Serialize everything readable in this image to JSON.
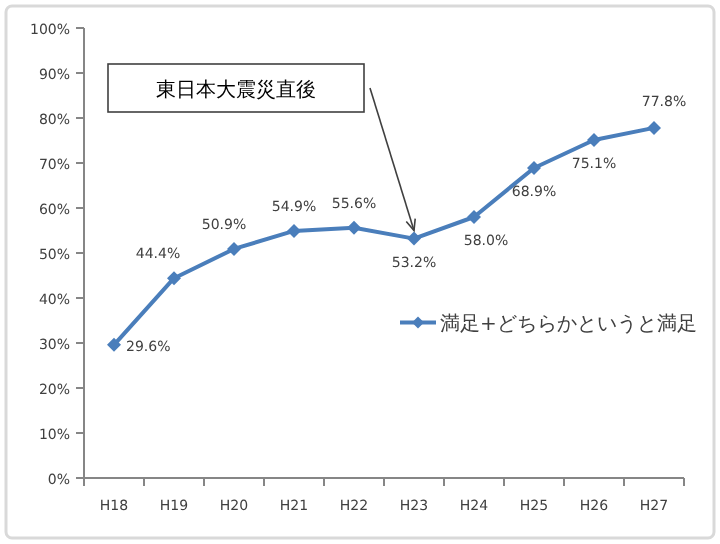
{
  "chart_data": {
    "type": "line",
    "categories": [
      "H18",
      "H19",
      "H20",
      "H21",
      "H22",
      "H23",
      "H24",
      "H25",
      "H26",
      "H27"
    ],
    "series": [
      {
        "name": "満足+どちらかというと満足",
        "color": "#4a7ebb",
        "values": [
          29.6,
          44.4,
          50.9,
          54.9,
          55.6,
          53.2,
          58.0,
          68.9,
          75.1,
          77.8
        ],
        "value_labels": [
          "29.6%",
          "44.4%",
          "50.9%",
          "54.9%",
          "55.6%",
          "53.2%",
          "58.0%",
          "68.9%",
          "75.1%",
          "77.8%"
        ]
      }
    ],
    "ylim": [
      0,
      100
    ],
    "yticks": [
      {
        "value": 0,
        "label": "0%"
      },
      {
        "value": 10,
        "label": "10%"
      },
      {
        "value": 20,
        "label": "20%"
      },
      {
        "value": 30,
        "label": "30%"
      },
      {
        "value": 40,
        "label": "40%"
      },
      {
        "value": 50,
        "label": "50%"
      },
      {
        "value": 60,
        "label": "60%"
      },
      {
        "value": 70,
        "label": "70%"
      },
      {
        "value": 80,
        "label": "80%"
      },
      {
        "value": 90,
        "label": "90%"
      },
      {
        "value": 100,
        "label": "100%"
      }
    ],
    "annotations": [
      "東日本大震災直後"
    ],
    "marker": "diamond",
    "line_style": "solid",
    "grid": false,
    "legend": "right"
  }
}
